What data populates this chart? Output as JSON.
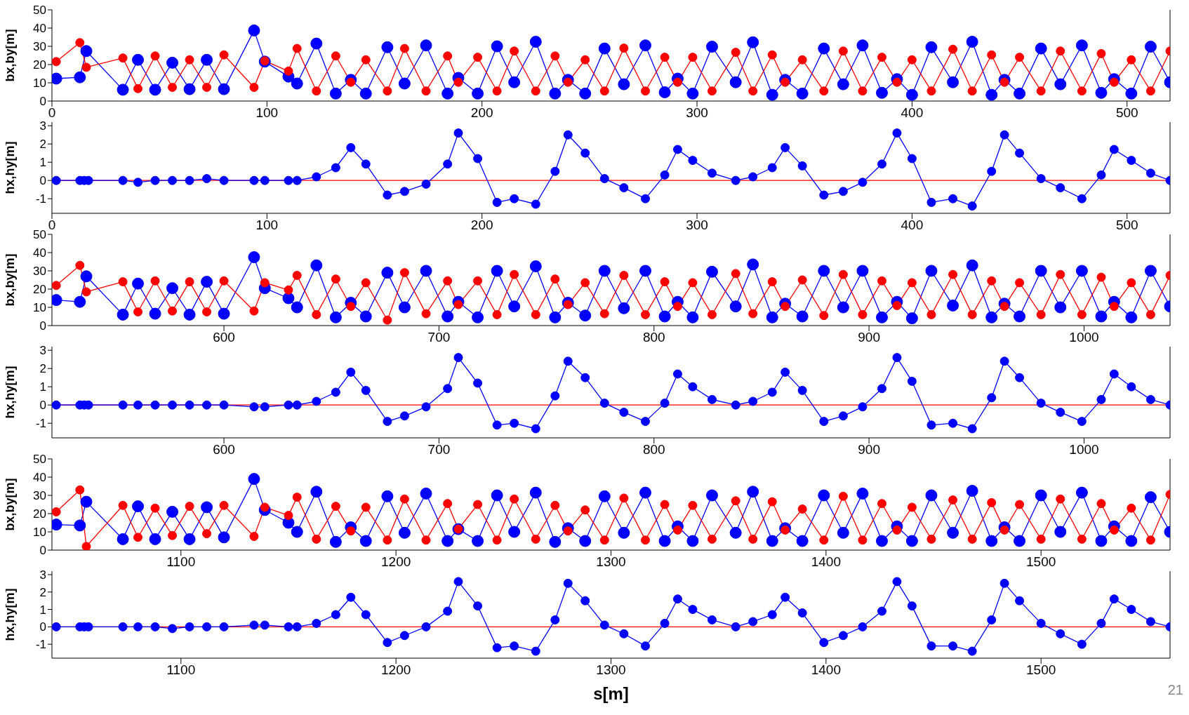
{
  "chart_data": [
    {
      "type": "line",
      "ylabel": "bx,by[m]",
      "xlim": [
        0,
        520
      ],
      "xticks": [
        0,
        100,
        200,
        300,
        400,
        500
      ],
      "ylim": [
        0,
        50
      ],
      "yticks": [
        0,
        10,
        20,
        30,
        40,
        50
      ],
      "marker": "circle",
      "x": [
        2,
        13,
        16,
        33,
        40,
        48,
        56,
        64,
        72,
        80,
        94,
        99,
        110,
        114,
        123,
        132,
        139,
        146,
        156,
        164,
        174,
        184,
        189,
        198,
        207,
        215,
        225,
        234,
        240,
        248,
        257,
        266,
        276,
        285,
        291,
        298,
        307,
        318,
        326,
        335,
        341,
        349,
        359,
        368,
        377,
        386,
        393,
        400,
        409,
        419,
        428,
        437,
        443,
        450,
        460,
        469,
        479,
        488,
        494,
        502,
        511,
        520
      ],
      "series": [
        {
          "color": "#0000ff",
          "values": [
            12.3,
            13,
            27.4,
            6.2,
            22.6,
            6.2,
            21,
            6.5,
            22.6,
            6.5,
            38.7,
            21.6,
            13.4,
            9.6,
            31.5,
            4.1,
            11.6,
            4.1,
            29.5,
            9.6,
            30.5,
            4.1,
            12.7,
            4.1,
            30,
            10.3,
            32.5,
            4.1,
            11.6,
            4.1,
            28.8,
            9.2,
            30.5,
            4.8,
            12.3,
            4.1,
            29.8,
            10.3,
            32.2,
            3.4,
            11.6,
            4.1,
            28.8,
            9.2,
            30.5,
            4.5,
            12,
            3.4,
            29.5,
            10.3,
            32.5,
            3.4,
            11.6,
            4.1,
            28.8,
            9.2,
            30.5,
            4.5,
            12,
            4.1,
            29.8,
            10.3
          ]
        },
        {
          "color": "#ff0000",
          "values": [
            21.6,
            32,
            18.5,
            23.6,
            6.8,
            24.7,
            7.5,
            22.6,
            7.5,
            25.3,
            7.5,
            22,
            16.4,
            28.8,
            5.5,
            24.7,
            10.3,
            22.6,
            5.5,
            28.8,
            5.5,
            24.7,
            10.3,
            24,
            5.5,
            27.4,
            5.5,
            24.7,
            10.3,
            22.6,
            5.5,
            29,
            5.5,
            24,
            10.3,
            24,
            5.5,
            26.7,
            5.5,
            25.3,
            10.3,
            22.6,
            5.5,
            27.4,
            5.5,
            24,
            10.3,
            22.6,
            5.5,
            28.4,
            5.5,
            25.3,
            10.3,
            24,
            5.5,
            27.4,
            5.5,
            26,
            10.3,
            22.6,
            5.5,
            27.4
          ]
        }
      ]
    },
    {
      "type": "line",
      "ylabel": "hx,hy[m]",
      "xlim": [
        0,
        520
      ],
      "xticks": [
        0,
        100,
        200,
        300,
        400,
        500
      ],
      "ylim": [
        -1.8,
        3.2
      ],
      "yticks": [
        -1,
        0,
        1,
        2,
        3
      ],
      "series": [
        {
          "color": "#ff0000",
          "marker": "none",
          "x": [
            0,
            520
          ],
          "values": [
            0,
            0
          ]
        },
        {
          "color": "#0000ff",
          "marker": "circle",
          "x": [
            2,
            13,
            15,
            17,
            33,
            40,
            48,
            56,
            64,
            72,
            80,
            94,
            99,
            110,
            114,
            123,
            132,
            139,
            146,
            156,
            164,
            174,
            184,
            189,
            198,
            207,
            215,
            225,
            234,
            240,
            248,
            257,
            266,
            276,
            285,
            291,
            298,
            307,
            318,
            326,
            335,
            341,
            349,
            359,
            368,
            377,
            386,
            393,
            400,
            409,
            419,
            428,
            437,
            443,
            450,
            460,
            469,
            479,
            488,
            494,
            502,
            511,
            520
          ],
          "values": [
            0,
            0,
            0,
            0,
            0,
            -0.1,
            0,
            0,
            0,
            0.1,
            0,
            0,
            0,
            0,
            0,
            0.2,
            0.7,
            1.8,
            0.9,
            -0.8,
            -0.6,
            -0.2,
            0.9,
            2.6,
            1.2,
            -1.2,
            -1,
            -1.3,
            0.5,
            2.5,
            1.5,
            0.1,
            -0.4,
            -1,
            0.3,
            1.7,
            1.1,
            0.4,
            0,
            0.2,
            0.7,
            1.8,
            0.8,
            -0.8,
            -0.6,
            -0.1,
            0.9,
            2.6,
            1.2,
            -1.2,
            -1,
            -1.4,
            0.5,
            2.5,
            1.5,
            0.1,
            -0.4,
            -1,
            0.3,
            1.7,
            1.1,
            0.4,
            0
          ]
        }
      ]
    },
    {
      "type": "line",
      "ylabel": "bx,by[m]",
      "xlim": [
        520,
        1040
      ],
      "xticks": [
        600,
        700,
        800,
        900,
        1000
      ],
      "ylim": [
        0,
        50
      ],
      "yticks": [
        0,
        10,
        20,
        30,
        40,
        50
      ],
      "marker": "circle",
      "x": [
        522,
        533,
        536,
        553,
        560,
        568,
        576,
        584,
        592,
        600,
        614,
        619,
        630,
        634,
        643,
        652,
        659,
        666,
        676,
        684,
        694,
        704,
        709,
        718,
        727,
        735,
        745,
        754,
        760,
        768,
        777,
        786,
        796,
        805,
        811,
        818,
        827,
        838,
        846,
        855,
        861,
        869,
        879,
        888,
        897,
        906,
        913,
        920,
        929,
        939,
        948,
        957,
        963,
        970,
        980,
        989,
        999,
        1008,
        1014,
        1022,
        1031,
        1040
      ],
      "series": [
        {
          "color": "#0000ff",
          "values": [
            14,
            13,
            27,
            6,
            23,
            6.5,
            20.5,
            6,
            24,
            6.5,
            37.5,
            20.5,
            15,
            10,
            33,
            4.5,
            12.5,
            5,
            29,
            10,
            30,
            5,
            13,
            4.5,
            30,
            10.5,
            32.5,
            4.5,
            12.5,
            5.5,
            30,
            9.5,
            30,
            5,
            13,
            4.5,
            29.5,
            10.5,
            33.5,
            4.5,
            12,
            5,
            30,
            10,
            30,
            4.5,
            13,
            4,
            30,
            11,
            33,
            4.5,
            12,
            5,
            30,
            10,
            30,
            5,
            13,
            4.5,
            30,
            10.5
          ]
        },
        {
          "color": "#ff0000",
          "values": [
            22,
            33,
            18.5,
            24,
            7.5,
            24.5,
            8,
            24,
            7.5,
            24.5,
            8,
            23.5,
            19.5,
            27.5,
            6,
            25.5,
            10.5,
            23.5,
            3,
            29,
            6.5,
            24.5,
            11.5,
            24.5,
            6,
            28,
            6,
            25.5,
            11.5,
            23.5,
            6.5,
            27.5,
            6,
            24,
            10.5,
            23.5,
            6,
            28.5,
            6.5,
            24,
            10.5,
            25,
            5.5,
            28,
            6,
            24.5,
            11,
            23.5,
            6,
            28,
            6,
            24.5,
            10.5,
            23.5,
            6,
            28,
            6,
            26.5,
            10.5,
            23.5,
            6,
            27.5
          ]
        }
      ]
    },
    {
      "type": "line",
      "ylabel": "hx,hy[m]",
      "xlim": [
        520,
        1040
      ],
      "xticks": [
        600,
        700,
        800,
        900,
        1000
      ],
      "ylim": [
        -1.8,
        3.2
      ],
      "yticks": [
        -1,
        0,
        1,
        2,
        3
      ],
      "series": [
        {
          "color": "#ff0000",
          "marker": "none",
          "x": [
            520,
            1040
          ],
          "values": [
            0,
            0
          ]
        },
        {
          "color": "#0000ff",
          "marker": "circle",
          "x": [
            522,
            533,
            535,
            537,
            553,
            560,
            568,
            576,
            584,
            592,
            600,
            614,
            619,
            630,
            634,
            643,
            652,
            659,
            666,
            676,
            684,
            694,
            704,
            709,
            718,
            727,
            735,
            745,
            754,
            760,
            768,
            777,
            786,
            796,
            805,
            811,
            818,
            827,
            838,
            846,
            855,
            861,
            869,
            879,
            888,
            897,
            906,
            913,
            920,
            929,
            939,
            948,
            957,
            963,
            970,
            980,
            989,
            999,
            1008,
            1014,
            1022,
            1031,
            1040
          ],
          "values": [
            0,
            0,
            0,
            0,
            0,
            0,
            0,
            0,
            0,
            0,
            0,
            -0.1,
            -0.1,
            0,
            0,
            0.2,
            0.7,
            1.8,
            0.8,
            -0.9,
            -0.6,
            -0.1,
            0.9,
            2.6,
            1.2,
            -1.1,
            -1,
            -1.3,
            0.5,
            2.4,
            1.5,
            0.1,
            -0.4,
            -0.9,
            0.1,
            1.7,
            1,
            0.3,
            0,
            0.2,
            0.7,
            1.8,
            0.8,
            -0.9,
            -0.6,
            -0.1,
            0.9,
            2.6,
            1.3,
            -1.1,
            -1,
            -1.3,
            0.4,
            2.4,
            1.5,
            0.1,
            -0.4,
            -0.9,
            0.3,
            1.7,
            1,
            0.3,
            0
          ]
        }
      ]
    },
    {
      "type": "line",
      "ylabel": "bx,by[m]",
      "xlim": [
        1040,
        1560
      ],
      "xticks": [
        1100,
        1200,
        1300,
        1400,
        1500
      ],
      "ylim": [
        0,
        50
      ],
      "yticks": [
        0,
        10,
        20,
        30,
        40,
        50
      ],
      "marker": "circle",
      "x": [
        1042,
        1053,
        1056,
        1073,
        1080,
        1088,
        1096,
        1104,
        1112,
        1120,
        1134,
        1139,
        1150,
        1154,
        1163,
        1172,
        1179,
        1186,
        1196,
        1204,
        1214,
        1224,
        1229,
        1238,
        1247,
        1255,
        1265,
        1274,
        1280,
        1288,
        1297,
        1306,
        1316,
        1325,
        1331,
        1338,
        1347,
        1358,
        1366,
        1375,
        1381,
        1389,
        1399,
        1408,
        1417,
        1426,
        1433,
        1440,
        1449,
        1459,
        1468,
        1477,
        1483,
        1490,
        1500,
        1509,
        1519,
        1528,
        1534,
        1542,
        1551,
        1560
      ],
      "series": [
        {
          "color": "#0000ff",
          "values": [
            14,
            13.5,
            26.5,
            6,
            24,
            6,
            21,
            6,
            23.5,
            7,
            39,
            22,
            15,
            10,
            32,
            4.5,
            12.5,
            5,
            29.5,
            9.5,
            31,
            5,
            11.5,
            5,
            30,
            10,
            31.5,
            4.5,
            12,
            5,
            29.5,
            9.5,
            31.5,
            5,
            13,
            5,
            30,
            9.5,
            32,
            5,
            12,
            5,
            30,
            9.5,
            31,
            5,
            13,
            5,
            30,
            9.5,
            32.5,
            5,
            12.5,
            5,
            30,
            10,
            31.5,
            5,
            13,
            5,
            29,
            10
          ]
        },
        {
          "color": "#ff0000",
          "values": [
            21,
            33,
            2,
            24.5,
            7,
            23,
            8,
            24,
            9,
            24.5,
            7.5,
            23.5,
            19,
            29,
            6,
            24,
            10.5,
            23.5,
            5.5,
            28,
            5.5,
            25.5,
            11.5,
            25,
            5.5,
            28,
            6,
            24.5,
            10.5,
            22,
            5.5,
            28.5,
            5.5,
            25,
            11,
            24.5,
            6,
            27,
            6,
            26.5,
            11,
            22.5,
            5.5,
            29.5,
            5.5,
            25.5,
            11,
            23.5,
            6,
            27.5,
            6,
            26,
            11,
            25,
            6,
            28,
            6,
            25.5,
            11,
            23,
            5.5,
            30.5
          ]
        }
      ]
    },
    {
      "type": "line",
      "ylabel": "hx,hy[m]",
      "xlabel": "s[m]",
      "xlim": [
        1040,
        1560
      ],
      "xticks": [
        1100,
        1200,
        1300,
        1400,
        1500
      ],
      "ylim": [
        -1.8,
        3.2
      ],
      "yticks": [
        -1,
        0,
        1,
        2,
        3
      ],
      "annotations": [
        "21"
      ],
      "series": [
        {
          "color": "#ff0000",
          "marker": "none",
          "x": [
            1040,
            1560
          ],
          "values": [
            0,
            0
          ]
        },
        {
          "color": "#0000ff",
          "marker": "circle",
          "x": [
            1042,
            1053,
            1055,
            1057,
            1073,
            1080,
            1088,
            1096,
            1104,
            1112,
            1120,
            1134,
            1139,
            1150,
            1154,
            1163,
            1172,
            1179,
            1186,
            1196,
            1204,
            1214,
            1224,
            1229,
            1238,
            1247,
            1255,
            1265,
            1274,
            1280,
            1288,
            1297,
            1306,
            1316,
            1325,
            1331,
            1338,
            1347,
            1358,
            1366,
            1375,
            1381,
            1389,
            1399,
            1408,
            1417,
            1426,
            1433,
            1440,
            1449,
            1459,
            1468,
            1477,
            1483,
            1490,
            1500,
            1509,
            1519,
            1528,
            1534,
            1542,
            1551,
            1560
          ],
          "values": [
            0,
            0,
            0,
            0,
            0,
            0,
            0,
            -0.1,
            0,
            0,
            0,
            0.1,
            0.1,
            0,
            0,
            0.2,
            0.7,
            1.7,
            0.7,
            -0.9,
            -0.5,
            0,
            0.9,
            2.6,
            1.2,
            -1.2,
            -1.1,
            -1.4,
            0.4,
            2.5,
            1.5,
            0.1,
            -0.4,
            -1.1,
            0.2,
            1.6,
            1,
            0.4,
            0,
            0.3,
            0.7,
            1.7,
            0.8,
            -0.9,
            -0.5,
            0,
            0.9,
            2.6,
            1.2,
            -1.1,
            -1.1,
            -1.4,
            0.4,
            2.5,
            1.5,
            0.2,
            -0.4,
            -1,
            0.2,
            1.6,
            1,
            0.3,
            0
          ]
        }
      ]
    }
  ]
}
